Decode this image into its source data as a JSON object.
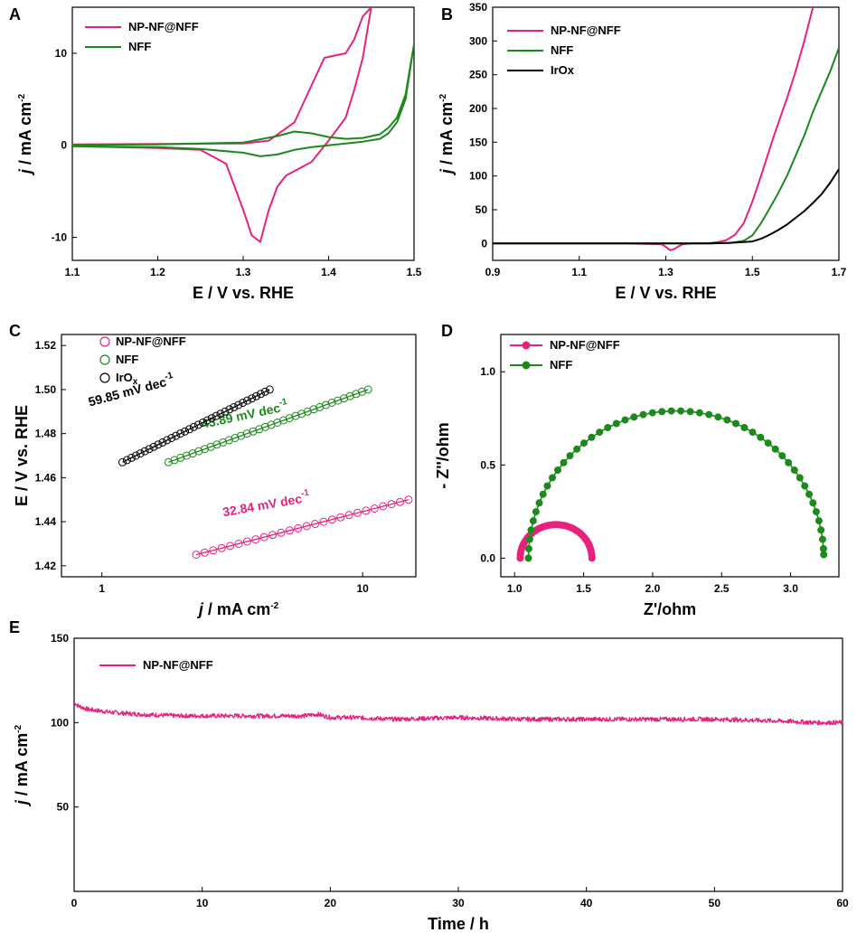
{
  "figure": {
    "colors": {
      "pink": "#e8217f",
      "green": "#1b8a1b",
      "black": "#000000"
    },
    "icons": {
      "legend_line": "line-segment",
      "legend_circle": "open-circle-marker",
      "legend_dot_line": "line-with-filled-dot"
    }
  },
  "chart_data": [
    {
      "panel": "A",
      "type": "line",
      "title": "",
      "xlabel": "E / V vs. RHE",
      "ylabel": "j / mA cm",
      "ylabel_exp": "-2",
      "xlim": [
        1.1,
        1.5
      ],
      "ylim": [
        -12.5,
        15
      ],
      "xticks": [
        1.1,
        1.2,
        1.3,
        1.4,
        1.5
      ],
      "xtick_labels": [
        "1.1",
        "1.2",
        "1.3",
        "1.4",
        "1.5"
      ],
      "yticks": [
        -10,
        0,
        10
      ],
      "ytick_labels": [
        "-10",
        "0",
        "10"
      ],
      "legend_position": "top-left",
      "series": [
        {
          "name": "NP-NF@NFF",
          "color": "#e8217f",
          "x": [
            1.1,
            1.2,
            1.3,
            1.33,
            1.36,
            1.38,
            1.395,
            1.41,
            1.42,
            1.43,
            1.44,
            1.45,
            1.45,
            1.44,
            1.43,
            1.42,
            1.4,
            1.38,
            1.36,
            1.35,
            1.34,
            1.33,
            1.32,
            1.31,
            1.3,
            1.28,
            1.25,
            1.2,
            1.15,
            1.1
          ],
          "y": [
            0.1,
            0.15,
            0.2,
            0.5,
            2.5,
            6.5,
            9.5,
            9.8,
            10.0,
            11.5,
            14,
            15,
            15,
            9.5,
            6,
            3,
            0.5,
            -1.8,
            -2.8,
            -3.3,
            -4.5,
            -7.0,
            -10.5,
            -9.8,
            -7.0,
            -2.0,
            -0.5,
            -0.3,
            -0.2,
            -0.1
          ]
        },
        {
          "name": "NFF",
          "color": "#1b8a1b",
          "x": [
            1.1,
            1.2,
            1.3,
            1.34,
            1.36,
            1.38,
            1.4,
            1.42,
            1.44,
            1.46,
            1.47,
            1.48,
            1.49,
            1.5,
            1.5,
            1.49,
            1.48,
            1.47,
            1.46,
            1.44,
            1.42,
            1.4,
            1.38,
            1.36,
            1.34,
            1.32,
            1.3,
            1.25,
            1.2,
            1.1
          ],
          "y": [
            0.05,
            0.1,
            0.3,
            1.0,
            1.5,
            1.3,
            0.9,
            0.7,
            0.8,
            1.2,
            1.9,
            3.0,
            5.5,
            11.0,
            11.0,
            5.0,
            2.5,
            1.3,
            0.7,
            0.4,
            0.2,
            0.0,
            -0.2,
            -0.5,
            -1.0,
            -1.2,
            -0.8,
            -0.4,
            -0.2,
            -0.1
          ]
        }
      ]
    },
    {
      "panel": "B",
      "type": "line",
      "title": "",
      "xlabel": "E / V vs. RHE",
      "ylabel": "j / mA cm",
      "ylabel_exp": "-2",
      "xlim": [
        0.9,
        1.7
      ],
      "ylim": [
        -25,
        350
      ],
      "xticks": [
        0.9,
        1.1,
        1.3,
        1.5,
        1.7
      ],
      "xtick_labels": [
        "0.9",
        "1.1",
        "1.3",
        "1.5",
        "1.7"
      ],
      "yticks": [
        0,
        50,
        100,
        150,
        200,
        250,
        300,
        350
      ],
      "ytick_labels": [
        "0",
        "50",
        "100",
        "150",
        "200",
        "250",
        "300",
        "350"
      ],
      "legend_position": "top-left",
      "series": [
        {
          "name": "NP-NF@NFF",
          "color": "#e8217f",
          "x": [
            0.9,
            1.2,
            1.29,
            1.3,
            1.31,
            1.32,
            1.33,
            1.34,
            1.36,
            1.4,
            1.42,
            1.44,
            1.46,
            1.48,
            1.5,
            1.52,
            1.55,
            1.58,
            1.6,
            1.62,
            1.64
          ],
          "y": [
            0,
            0,
            -1,
            -5,
            -10,
            -8,
            -4,
            -1,
            0,
            0.5,
            2,
            5,
            13,
            30,
            62,
            100,
            160,
            215,
            255,
            300,
            350
          ]
        },
        {
          "name": "NFF",
          "color": "#1b8a1b",
          "x": [
            0.9,
            1.3,
            1.4,
            1.45,
            1.48,
            1.5,
            1.52,
            1.54,
            1.56,
            1.58,
            1.6,
            1.62,
            1.64,
            1.66,
            1.68,
            1.7
          ],
          "y": [
            0,
            0,
            0,
            1,
            4,
            12,
            30,
            52,
            75,
            100,
            130,
            160,
            195,
            225,
            255,
            290
          ]
        },
        {
          "name": "IrOx",
          "color": "#000000",
          "x": [
            0.9,
            1.4,
            1.45,
            1.5,
            1.52,
            1.54,
            1.56,
            1.58,
            1.6,
            1.62,
            1.64,
            1.66,
            1.68,
            1.7
          ],
          "y": [
            0,
            0,
            1,
            3,
            7,
            13,
            20,
            28,
            38,
            48,
            60,
            73,
            90,
            110
          ]
        }
      ]
    },
    {
      "panel": "C",
      "type": "scatter",
      "title": "",
      "xlabel": "j / mA cm",
      "xlabel_exp": "-2",
      "ylabel": "E / V vs. RHE",
      "xscale": "log",
      "xlim": [
        0.7,
        16
      ],
      "ylim": [
        1.415,
        1.525
      ],
      "xticks": [
        1,
        10
      ],
      "xtick_labels": [
        "1",
        "10"
      ],
      "yticks": [
        1.42,
        1.44,
        1.46,
        1.48,
        1.5,
        1.52
      ],
      "ytick_labels": [
        "1.42",
        "1.44",
        "1.46",
        "1.48",
        "1.50",
        "1.52"
      ],
      "legend_position": "top-right",
      "legend_marker": "open-circle",
      "series": [
        {
          "name": "NP-NF@NFF",
          "color": "#e8217f",
          "x_range": [
            2.3,
            15.0
          ],
          "y_range": [
            1.425,
            1.45
          ],
          "n_points": 26,
          "fit_label": "32.84 mV dec",
          "fit_exp": "-1",
          "fit_label_color": "#e8217f"
        },
        {
          "name": "NFF",
          "color": "#1b8a1b",
          "x_range": [
            1.8,
            10.5
          ],
          "y_range": [
            1.467,
            1.5
          ],
          "n_points": 34,
          "fit_label": "43.89 mV dec",
          "fit_exp": "-1",
          "fit_label_color": "#1b8a1b"
        },
        {
          "name": "IrOx",
          "name_main": "IrO",
          "name_sub": "x",
          "color": "#000000",
          "x_range": [
            1.2,
            4.4
          ],
          "y_range": [
            1.467,
            1.5
          ],
          "n_points": 34,
          "fit_label": "59.85 mV dec",
          "fit_exp": "-1",
          "fit_label_color": "#000000"
        }
      ]
    },
    {
      "panel": "D",
      "type": "line",
      "title": "",
      "xlabel": "Z'/ohm",
      "ylabel": "- Z''/ohm",
      "xlim": [
        0.9,
        3.35
      ],
      "ylim": [
        -0.1,
        1.2
      ],
      "xticks": [
        1.0,
        1.5,
        2.0,
        2.5,
        3.0
      ],
      "xtick_labels": [
        "1.0",
        "1.5",
        "2.0",
        "2.5",
        "3.0"
      ],
      "yticks": [
        0.0,
        0.5,
        1.0
      ],
      "ytick_labels": [
        "0.0",
        "0.5",
        "1.0"
      ],
      "legend_position": "top-left",
      "legend_marker": "line-with-filled-dot",
      "series": [
        {
          "name": "NP-NF@NFF",
          "color": "#e8217f",
          "shape": "semicircle",
          "x_start": 1.04,
          "x_end": 1.56,
          "peak": 0.18,
          "n_points": 45
        },
        {
          "name": "NFF",
          "color": "#1b8a1b",
          "shape": "semicircle-with-tails",
          "x_start": 1.1,
          "x_end": 3.24,
          "peak": 0.79,
          "n_points": 50
        }
      ]
    },
    {
      "panel": "E",
      "type": "line",
      "title": "",
      "xlabel": "Time / h",
      "ylabel": "j / mA cm",
      "ylabel_exp": "-2",
      "xlim": [
        0,
        60
      ],
      "ylim": [
        0,
        150
      ],
      "xticks": [
        0,
        10,
        20,
        30,
        40,
        50,
        60
      ],
      "xtick_labels": [
        "0",
        "10",
        "20",
        "30",
        "40",
        "50",
        "60"
      ],
      "yticks": [
        50,
        100,
        150
      ],
      "ytick_labels": [
        "50",
        "100",
        "150"
      ],
      "legend_position": "top-left",
      "series": [
        {
          "name": "NP-NF@NFF",
          "color": "#e8217f",
          "x": [
            0,
            0.3,
            1,
            2,
            3,
            5,
            8,
            10,
            15,
            18,
            19,
            20,
            22,
            25,
            30,
            35,
            40,
            45,
            50,
            55,
            58,
            60
          ],
          "y": [
            112,
            110,
            108,
            107,
            106,
            105,
            104,
            104,
            104,
            104,
            105,
            103,
            103,
            102,
            103,
            102,
            102,
            102,
            102,
            101,
            100,
            100
          ]
        }
      ]
    }
  ]
}
